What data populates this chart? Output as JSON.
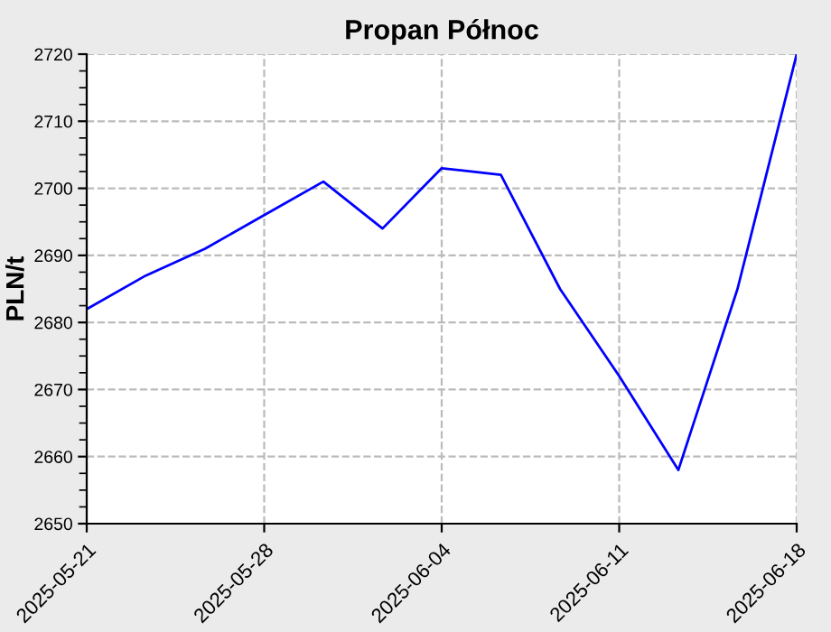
{
  "chart_data": {
    "type": "line",
    "title": "Propan Północ",
    "ylabel": "PLN/t",
    "categories": [
      "2025-05-21",
      null,
      null,
      "2025-05-28",
      null,
      null,
      "2025-06-04",
      null,
      null,
      "2025-06-11",
      null,
      null,
      "2025-06-18"
    ],
    "series": [
      {
        "color": "#0000ff",
        "values": [
          2682,
          2687,
          2691,
          2696,
          2701,
          2694,
          2703,
          2702,
          2685,
          2672,
          2658,
          2685,
          2720
        ]
      }
    ],
    "ylim": [
      2650,
      2720
    ],
    "yticks": [
      2650,
      2660,
      2670,
      2680,
      2690,
      2700,
      2710,
      2720
    ],
    "grid": true,
    "marker": "none",
    "line_style": "solid",
    "legend": false
  }
}
